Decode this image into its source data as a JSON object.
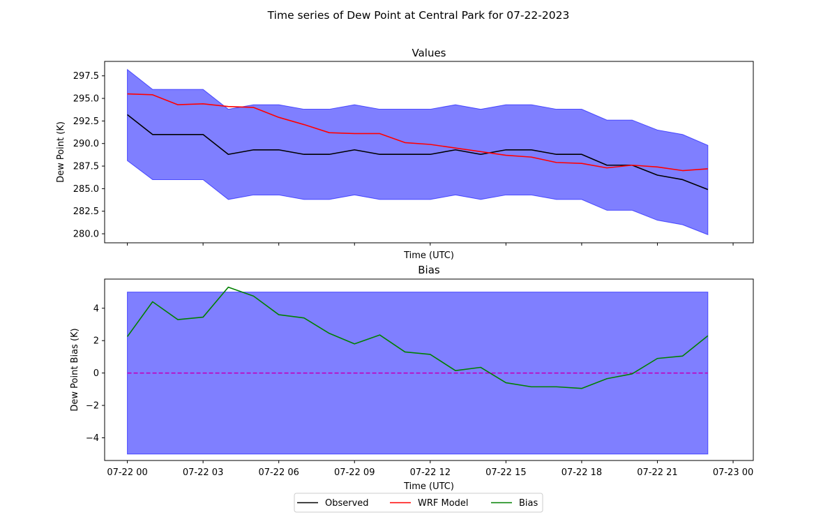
{
  "figure": {
    "title": "Time series of Dew Point at Central Park for 07-22-2023"
  },
  "legend": {
    "entries": [
      {
        "label": "Observed",
        "color": "#000000"
      },
      {
        "label": "WRF Model",
        "color": "#ff0000"
      },
      {
        "label": "Bias",
        "color": "#008000"
      }
    ]
  },
  "chart_data": [
    {
      "type": "line",
      "title": "Values",
      "xlabel": "Time (UTC)",
      "ylabel": "Dew Point (K)",
      "x_unit": "hours from 07-22 00 UTC",
      "xlim": [
        -0.9,
        24.8
      ],
      "ylim": [
        279.0,
        299.1
      ],
      "grid": false,
      "yticks": [
        280.0,
        282.5,
        285.0,
        287.5,
        290.0,
        292.5,
        295.0,
        297.5
      ],
      "ytick_labels": [
        "280.0",
        "282.5",
        "285.0",
        "287.5",
        "290.0",
        "292.5",
        "295.0",
        "297.5"
      ],
      "xticks": [
        0,
        3,
        6,
        9,
        12,
        15,
        18,
        21,
        24
      ],
      "xtick_labels": [],
      "x": [
        0,
        1,
        2,
        3,
        4,
        5,
        6,
        7,
        8,
        9,
        10,
        11,
        12,
        13,
        14,
        15,
        16,
        17,
        18,
        19,
        20,
        21,
        22,
        23
      ],
      "band": {
        "color": "#0000ff",
        "opacity": 0.5,
        "upper": [
          298.2,
          296.0,
          296.0,
          296.0,
          293.8,
          294.3,
          294.3,
          293.8,
          293.8,
          294.3,
          293.8,
          293.8,
          293.8,
          294.3,
          293.8,
          294.3,
          294.3,
          293.8,
          293.8,
          292.6,
          292.6,
          291.5,
          291.0,
          289.8
        ],
        "lower": [
          288.1,
          286.0,
          286.0,
          286.0,
          283.8,
          284.3,
          284.3,
          283.8,
          283.8,
          284.3,
          283.8,
          283.8,
          283.8,
          284.3,
          283.8,
          284.3,
          284.3,
          283.8,
          283.8,
          282.6,
          282.6,
          281.5,
          281.0,
          279.9
        ]
      },
      "series": [
        {
          "name": "Observed",
          "color": "#000000",
          "values": [
            293.2,
            291.0,
            291.0,
            291.0,
            288.8,
            289.3,
            289.3,
            288.8,
            288.8,
            289.3,
            288.8,
            288.8,
            288.8,
            289.3,
            288.8,
            289.3,
            289.3,
            288.8,
            288.8,
            287.6,
            287.6,
            286.5,
            286.0,
            284.9
          ]
        },
        {
          "name": "WRF Model",
          "color": "#ff0000",
          "values": [
            295.5,
            295.4,
            294.3,
            294.4,
            294.1,
            294.0,
            292.9,
            292.1,
            291.2,
            291.1,
            291.1,
            290.1,
            289.9,
            289.5,
            289.1,
            288.7,
            288.5,
            287.9,
            287.8,
            287.3,
            287.6,
            287.4,
            287.0,
            287.2
          ]
        }
      ]
    },
    {
      "type": "line",
      "title": "Bias",
      "xlabel": "Time (UTC)",
      "ylabel": "Dew Point Bias (K)",
      "x_unit": "hours from 07-22 00 UTC",
      "xlim": [
        -0.9,
        24.8
      ],
      "ylim": [
        -5.4,
        5.8
      ],
      "grid": false,
      "yticks": [
        -4,
        -2,
        0,
        2,
        4
      ],
      "ytick_labels": [
        "−4",
        "−2",
        "0",
        "2",
        "4"
      ],
      "xticks": [
        0,
        3,
        6,
        9,
        12,
        15,
        18,
        21,
        24
      ],
      "xtick_labels": [
        "07-22 00",
        "07-22 03",
        "07-22 06",
        "07-22 09",
        "07-22 12",
        "07-22 15",
        "07-22 18",
        "07-22 21",
        "07-23 00"
      ],
      "x": [
        0,
        1,
        2,
        3,
        4,
        5,
        6,
        7,
        8,
        9,
        10,
        11,
        12,
        13,
        14,
        15,
        16,
        17,
        18,
        19,
        20,
        21,
        22,
        23
      ],
      "band": {
        "color": "#0000ff",
        "opacity": 0.5,
        "upper": [
          5,
          5,
          5,
          5,
          5,
          5,
          5,
          5,
          5,
          5,
          5,
          5,
          5,
          5,
          5,
          5,
          5,
          5,
          5,
          5,
          5,
          5,
          5,
          5
        ],
        "lower": [
          -5,
          -5,
          -5,
          -5,
          -5,
          -5,
          -5,
          -5,
          -5,
          -5,
          -5,
          -5,
          -5,
          -5,
          -5,
          -5,
          -5,
          -5,
          -5,
          -5,
          -5,
          -5,
          -5,
          -5
        ]
      },
      "reference_line": {
        "y": 0,
        "color": "#bf00bf",
        "style": "dashed"
      },
      "series": [
        {
          "name": "Bias",
          "color": "#008000",
          "values": [
            2.25,
            4.4,
            3.3,
            3.45,
            5.3,
            4.75,
            3.6,
            3.4,
            2.45,
            1.8,
            2.35,
            1.3,
            1.15,
            0.15,
            0.35,
            -0.6,
            -0.85,
            -0.85,
            -0.95,
            -0.35,
            -0.05,
            0.9,
            1.05,
            2.3
          ]
        }
      ]
    }
  ]
}
